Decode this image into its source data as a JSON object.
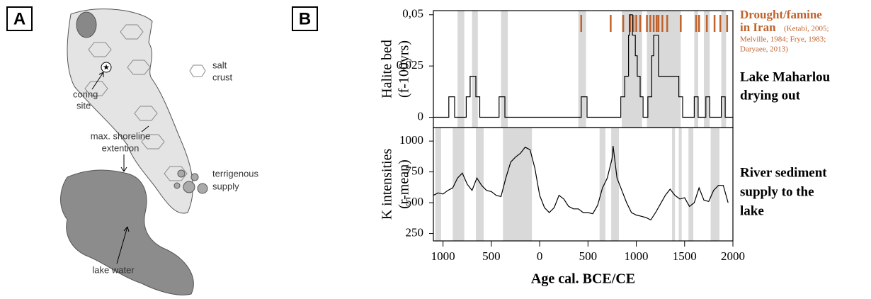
{
  "panel_a": {
    "label": "A",
    "salt_crust": [
      "salt",
      "crust"
    ],
    "coring_site": [
      "coring",
      "site"
    ],
    "shoreline": [
      "max. shoreline",
      "extention"
    ],
    "terrigenous": [
      "terrigenous",
      "supply"
    ],
    "lake_water": "lake water"
  },
  "panel_b_label": "B",
  "chart_data": [
    {
      "type": "line",
      "y_label": [
        "Halite bed",
        "(f-100yrs)"
      ],
      "color": "#000000",
      "xlim": [
        -1100,
        2000
      ],
      "ylim": [
        -0.005,
        0.052
      ],
      "yticks": [
        {
          "value": 0.05,
          "label": "0,05"
        },
        {
          "value": 0.025,
          "label": "0,025"
        },
        0
      ],
      "x": [
        -1100,
        -940,
        -940,
        -880,
        -880,
        -760,
        -760,
        -720,
        -720,
        -660,
        -660,
        -620,
        -620,
        -420,
        -420,
        -360,
        -360,
        430,
        430,
        490,
        490,
        840,
        840,
        880,
        880,
        920,
        920,
        930,
        930,
        960,
        960,
        990,
        990,
        1010,
        1010,
        1040,
        1040,
        1070,
        1070,
        1120,
        1120,
        1160,
        1160,
        1180,
        1180,
        1230,
        1230,
        1440,
        1440,
        1480,
        1480,
        1600,
        1600,
        1640,
        1640,
        1720,
        1720,
        1760,
        1760,
        1880,
        1880,
        1920,
        1920,
        2000
      ],
      "values": [
        0,
        0,
        0.01,
        0.01,
        0,
        0,
        0.01,
        0.01,
        0.02,
        0.02,
        0.01,
        0.01,
        0,
        0,
        0.01,
        0.01,
        0,
        0,
        0.01,
        0.01,
        0,
        0,
        0.01,
        0.01,
        0.02,
        0.02,
        0.04,
        0.04,
        0.05,
        0.05,
        0.04,
        0.04,
        0.03,
        0.03,
        0.02,
        0.02,
        0.01,
        0.01,
        0,
        0,
        0.01,
        0.01,
        0.03,
        0.03,
        0.04,
        0.04,
        0.02,
        0.02,
        0.01,
        0.01,
        0,
        0,
        0.01,
        0.01,
        0,
        0,
        0.01,
        0.01,
        0,
        0,
        0.01,
        0.01,
        0,
        0
      ],
      "shaded": [
        [
          -850,
          -780
        ],
        [
          -700,
          -640
        ],
        [
          -400,
          -330
        ],
        [
          400,
          480
        ],
        [
          850,
          1060
        ],
        [
          1110,
          1460
        ],
        [
          1600,
          1640
        ],
        [
          1700,
          1760
        ],
        [
          1880,
          1930
        ]
      ],
      "shade_color": "#d9d9d9",
      "events": {
        "x": [
          430,
          735,
          865,
          935,
          970,
          1000,
          1040,
          1110,
          1145,
          1180,
          1210,
          1230,
          1270,
          1320,
          1460,
          1620,
          1650,
          1730,
          1810,
          1870,
          1940
        ],
        "color": "#c0622b"
      },
      "annotations": {
        "title": [
          "Drought/famine",
          "in Iran"
        ],
        "citation": [
          "(Ketabi, 2005;",
          "Melville, 1984; Frye, 1983;",
          "Daryaee, 2013)"
        ],
        "note": [
          "Lake Maharlou",
          "drying out"
        ]
      }
    },
    {
      "type": "line",
      "y_label": [
        "K intensities",
        "(r-mean)"
      ],
      "color": "#000000",
      "x_label": "Age cal. BCE/CE",
      "xlim": [
        -1100,
        2000
      ],
      "ylim": [
        190,
        1110
      ],
      "yticks": [
        1000,
        750,
        500,
        250
      ],
      "xticks": [
        {
          "value": -1000,
          "label": "1000"
        },
        {
          "value": -500,
          "label": "500"
        },
        0,
        500,
        1000,
        1500,
        2000
      ],
      "x": [
        -1100,
        -1050,
        -1000,
        -950,
        -900,
        -850,
        -800,
        -750,
        -700,
        -650,
        -600,
        -550,
        -500,
        -450,
        -400,
        -350,
        -300,
        -250,
        -200,
        -150,
        -100,
        -50,
        0,
        50,
        100,
        150,
        200,
        250,
        300,
        350,
        400,
        450,
        500,
        550,
        600,
        650,
        700,
        750,
        760,
        800,
        850,
        900,
        950,
        1000,
        1050,
        1100,
        1150,
        1200,
        1250,
        1300,
        1350,
        1400,
        1450,
        1500,
        1550,
        1600,
        1650,
        1700,
        1750,
        1800,
        1850,
        1900,
        1950
      ],
      "values": [
        560,
        580,
        570,
        600,
        620,
        700,
        740,
        650,
        600,
        700,
        640,
        600,
        590,
        560,
        550,
        700,
        830,
        870,
        900,
        950,
        930,
        780,
        560,
        460,
        420,
        460,
        560,
        530,
        470,
        450,
        450,
        420,
        420,
        410,
        480,
        620,
        700,
        860,
        960,
        700,
        600,
        500,
        420,
        400,
        390,
        380,
        360,
        420,
        490,
        560,
        610,
        560,
        530,
        540,
        470,
        500,
        620,
        520,
        510,
        600,
        640,
        640,
        500
      ],
      "shaded": [
        [
          -1080,
          -1020
        ],
        [
          -900,
          -780
        ],
        [
          -660,
          -580
        ],
        [
          -380,
          -80
        ],
        [
          620,
          680
        ],
        [
          740,
          820
        ],
        [
          1370,
          1400
        ],
        [
          1440,
          1470
        ],
        [
          1540,
          1590
        ],
        [
          1770,
          1860
        ]
      ],
      "shade_color": "#d9d9d9",
      "annotations": {
        "note": [
          "River sediment",
          "supply to the",
          "lake"
        ]
      }
    }
  ]
}
